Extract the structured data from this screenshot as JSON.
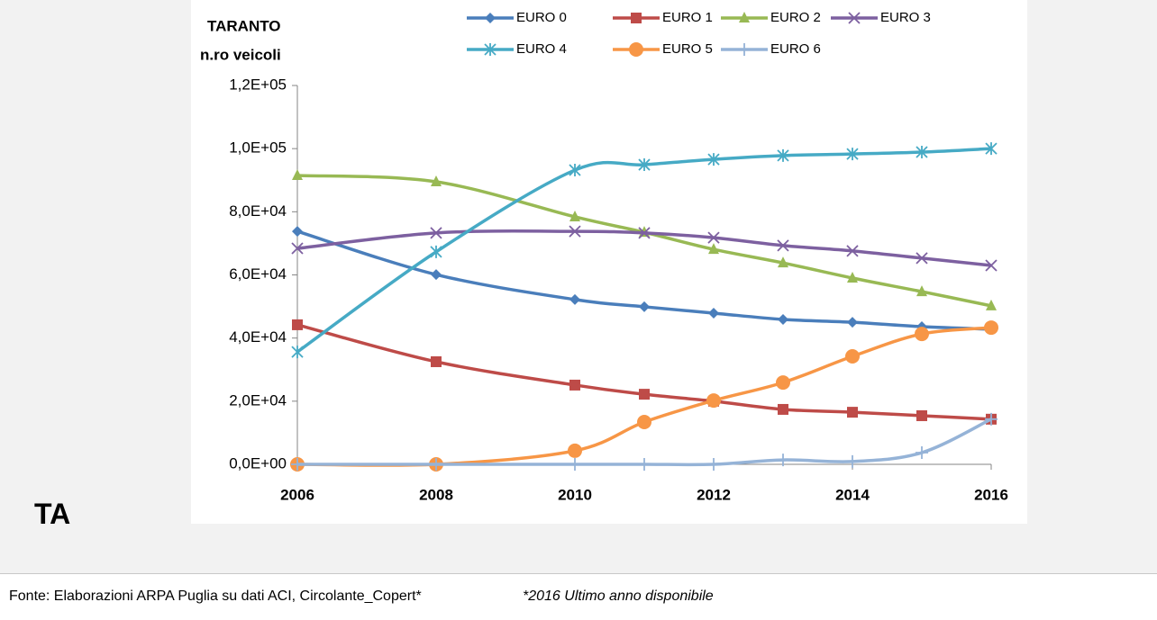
{
  "chart_data": {
    "type": "line",
    "title": "TARANTO",
    "y_label": "n.ro veicoli",
    "x": [
      2006,
      2008,
      2010,
      2011,
      2012,
      2013,
      2014,
      2015,
      2016
    ],
    "xlim": [
      2006,
      2016
    ],
    "xticks": [
      2006,
      2008,
      2010,
      2012,
      2014,
      2016
    ],
    "ylim": [
      0,
      120000
    ],
    "yticks": [
      {
        "value": 0,
        "label": "0,0E+00"
      },
      {
        "value": 20000,
        "label": "2,0E+04"
      },
      {
        "value": 40000,
        "label": "4,0E+04"
      },
      {
        "value": 60000,
        "label": "6,0E+04"
      },
      {
        "value": 80000,
        "label": "8,0E+04"
      },
      {
        "value": 100000,
        "label": "1,0E+05"
      },
      {
        "value": 120000,
        "label": "1,2E+05"
      }
    ],
    "smooth": true,
    "grid": false,
    "legend": "top",
    "series": [
      {
        "name": "EURO 0",
        "color": "#4a7ebb",
        "marker": "diamond",
        "values": [
          73800,
          60100,
          52200,
          49900,
          47900,
          45900,
          45000,
          43600,
          42800
        ]
      },
      {
        "name": "EURO 1",
        "color": "#be4b48",
        "marker": "square",
        "values": [
          44200,
          32500,
          25100,
          22200,
          20000,
          17400,
          16500,
          15400,
          14300
        ]
      },
      {
        "name": "EURO 2",
        "color": "#98b954",
        "marker": "triangle",
        "values": [
          91500,
          89500,
          78400,
          73500,
          68100,
          63800,
          59000,
          54700,
          50200
        ]
      },
      {
        "name": "EURO 3",
        "color": "#7d60a0",
        "marker": "x",
        "values": [
          68400,
          73300,
          73800,
          73300,
          71800,
          69300,
          67600,
          65300,
          63000
        ]
      },
      {
        "name": "EURO 4",
        "color": "#46aac5",
        "marker": "star",
        "values": [
          35600,
          67300,
          93200,
          94900,
          96600,
          97800,
          98300,
          98900,
          100000
        ]
      },
      {
        "name": "EURO 5",
        "color": "#f79646",
        "marker": "circle",
        "values": [
          0,
          0,
          4300,
          13400,
          20200,
          25900,
          34200,
          41300,
          43300
        ]
      },
      {
        "name": "EURO 6",
        "color": "#95b3d7",
        "marker": "plus",
        "values": [
          0,
          0,
          0,
          0,
          0,
          1400,
          900,
          3700,
          14300
        ]
      }
    ]
  },
  "side_label": "TA",
  "footer": {
    "source": "Fonte:  Elaborazioni ARPA Puglia su dati ACI, Circolante_Copert*",
    "note": "*2016 Ultimo anno disponibile"
  }
}
